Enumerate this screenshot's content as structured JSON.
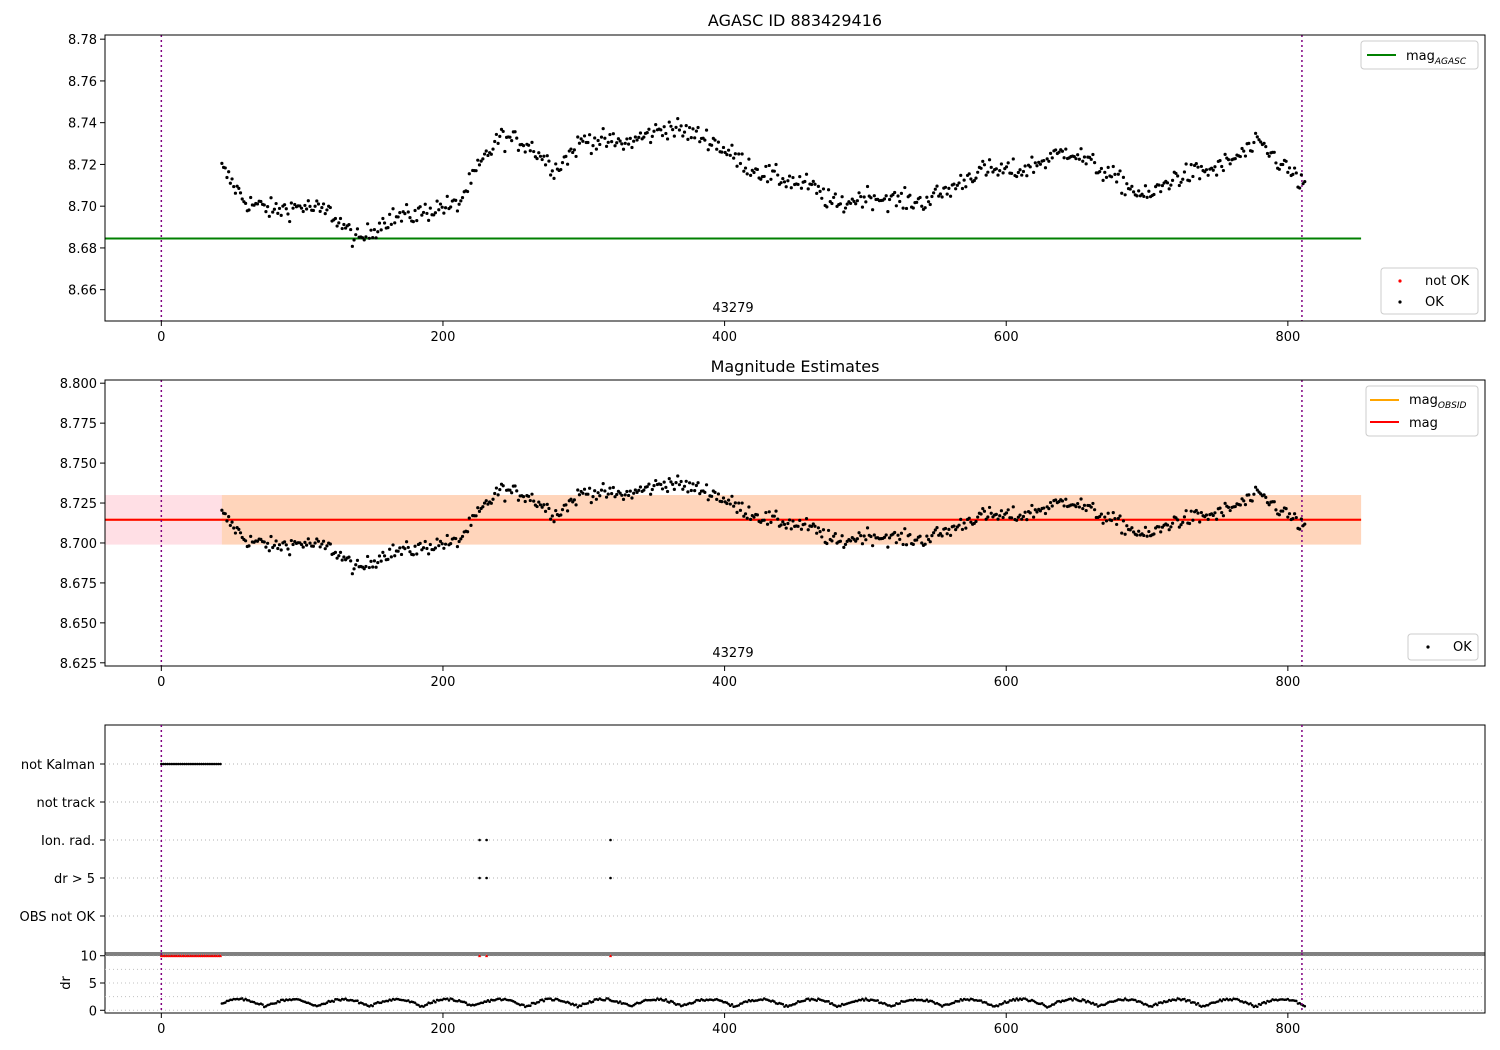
{
  "figure": {
    "panel1_title": "AGASC ID 883429416",
    "panel2_title": "Magnitude Estimates",
    "obsid_label": "43279"
  },
  "colors": {
    "ok": "#000000",
    "not_ok": "#ff0000",
    "mag_agasc": "#008000",
    "mag_obsid": "#ffa500",
    "mag": "#ff0000",
    "band_outer": "#ffc0cb",
    "band_inner": "#ffcc99",
    "boundary": "#800080"
  },
  "chart_data": [
    {
      "type": "scatter",
      "title": "AGASC ID 883429416",
      "xlim": [
        -40,
        940
      ],
      "ylim": [
        8.645,
        8.782
      ],
      "x_ticks": [
        0,
        200,
        400,
        600,
        800
      ],
      "y_ticks": [
        8.66,
        8.68,
        8.7,
        8.72,
        8.74,
        8.76,
        8.78
      ],
      "vlines": [
        0,
        810
      ],
      "obsid_annotation": {
        "text": "43279",
        "x": 405
      },
      "lines": [
        {
          "name": "mag",
          "sub": "AGASC",
          "y": 8.6845,
          "x": [
            -40,
            852
          ],
          "color": "#008000"
        }
      ],
      "legend_top": {
        "placement": "upper right",
        "entries": [
          {
            "name": "mag",
            "sub": "AGASC"
          }
        ]
      },
      "legend_bottom": {
        "placement": "lower right",
        "entries": [
          "not OK",
          "OK"
        ]
      },
      "series": [
        {
          "name": "not OK",
          "points": []
        },
        {
          "name": "OK",
          "trend_x": [
            43,
            60,
            80,
            100,
            120,
            140,
            160,
            180,
            200,
            210,
            225,
            240,
            260,
            280,
            300,
            330,
            360,
            390,
            410,
            430,
            460,
            480,
            500,
            520,
            540,
            560,
            580,
            610,
            645,
            680,
            700,
            720,
            750,
            780,
            810
          ],
          "trend_y": [
            8.718,
            8.702,
            8.698,
            8.7,
            8.697,
            8.683,
            8.694,
            8.696,
            8.7,
            8.7,
            8.718,
            8.733,
            8.73,
            8.718,
            8.732,
            8.73,
            8.738,
            8.732,
            8.722,
            8.715,
            8.71,
            8.7,
            8.705,
            8.703,
            8.702,
            8.708,
            8.717,
            8.717,
            8.727,
            8.712,
            8.704,
            8.714,
            8.718,
            8.73,
            8.711
          ],
          "count": 640,
          "scatter": 0.007
        }
      ]
    },
    {
      "type": "scatter",
      "title": "Magnitude Estimates",
      "xlim": [
        -40,
        940
      ],
      "ylim": [
        8.623,
        8.802
      ],
      "x_ticks": [
        0,
        200,
        400,
        600,
        800
      ],
      "y_ticks": [
        8.625,
        8.65,
        8.675,
        8.7,
        8.725,
        8.75,
        8.775,
        8.8
      ],
      "vlines": [
        0,
        810
      ],
      "obsid_annotation": {
        "text": "43279",
        "x": 405
      },
      "bands": [
        {
          "y0": 8.699,
          "y1": 8.73,
          "x": [
            -40,
            852
          ]
        },
        {
          "y0": 8.699,
          "y1": 8.73,
          "x": [
            43,
            852
          ]
        }
      ],
      "lines": [
        {
          "name": "mag",
          "sub": "OBSID",
          "y": 8.7145,
          "x": [
            -40,
            852
          ],
          "color": "#ffa500"
        },
        {
          "name": "mag",
          "sub": "",
          "y": 8.7145,
          "x": [
            -40,
            852
          ],
          "color": "#ff0000"
        }
      ],
      "legend_top": {
        "placement": "upper right",
        "entries": [
          {
            "name": "mag",
            "sub": "OBSID"
          },
          {
            "name": "mag",
            "sub": ""
          }
        ]
      },
      "legend_bottom": {
        "placement": "lower right",
        "entries": [
          "OK"
        ]
      }
    },
    {
      "type": "scatter",
      "xlim": [
        -40,
        940
      ],
      "flag_categories": [
        "not Kalman",
        "not track",
        "Ion. rad.",
        "dr > 5",
        "OBS not OK"
      ],
      "flags": {
        "not Kalman": {
          "x_range": [
            0,
            42
          ],
          "step": 1.5
        },
        "not track": {
          "x": []
        },
        "Ion. rad.": {
          "x": [
            226,
            231,
            319
          ]
        },
        "dr > 5": {
          "x": [
            226,
            231,
            319
          ]
        },
        "OBS not OK": {
          "x": []
        }
      },
      "vlines": [
        0,
        810
      ]
    },
    {
      "type": "scatter",
      "ylabel": "dr",
      "xlim": [
        -40,
        940
      ],
      "ylim": [
        -0.5,
        10.5
      ],
      "y_ticks": [
        0,
        5,
        10
      ],
      "x_ticks": [
        0,
        200,
        400,
        600,
        800
      ],
      "vlines": [
        0,
        810
      ],
      "capped_points": {
        "y": 10,
        "x_range": [
          0,
          42
        ],
        "step": 1.5,
        "extra_x": [
          226,
          231,
          319
        ]
      },
      "dr_series": {
        "x_range": [
          43,
          812
        ],
        "y_range": [
          0.2,
          2.6
        ]
      }
    }
  ]
}
